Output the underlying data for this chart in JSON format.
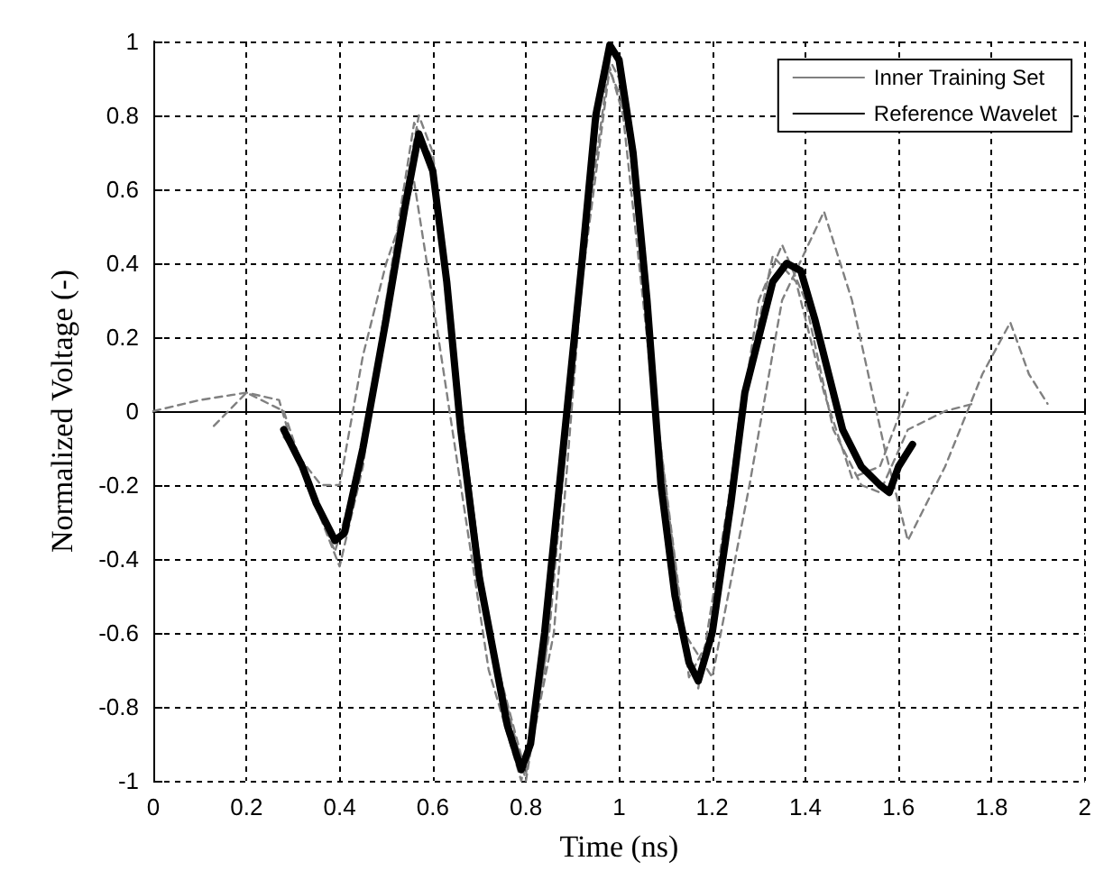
{
  "chart_data": {
    "type": "line",
    "xlabel": "Time (ns)",
    "ylabel": "Normalized Voltage (-)",
    "xlim": [
      0,
      2
    ],
    "ylim": [
      -1,
      1
    ],
    "xticks": [
      0,
      0.2,
      0.4,
      0.6,
      0.8,
      1,
      1.2,
      1.4,
      1.6,
      1.8,
      2
    ],
    "yticks": [
      -1,
      -0.8,
      -0.6,
      -0.4,
      -0.2,
      0,
      0.2,
      0.4,
      0.6,
      0.8,
      1
    ],
    "grid": true,
    "legend": "top right",
    "marker": "none",
    "series": [
      {
        "name": "Inner Training Set",
        "color": "#808080",
        "line_style": "dashed",
        "x": [
          0.13,
          0.2,
          0.28,
          0.32,
          0.39,
          0.45,
          0.5,
          0.56,
          0.6,
          0.66,
          0.72,
          0.8,
          0.86,
          0.92,
          0.98,
          1.02,
          1.08,
          1.14,
          1.2,
          1.28,
          1.35,
          1.44,
          1.5,
          1.57,
          1.62,
          1.7,
          1.78,
          1.84,
          1.88,
          1.92
        ],
        "values": [
          -0.04,
          0.05,
          0.0,
          -0.15,
          -0.38,
          -0.12,
          0.3,
          0.78,
          0.68,
          0.0,
          -0.6,
          -0.98,
          -0.6,
          0.35,
          0.93,
          0.75,
          0.0,
          -0.6,
          -0.72,
          -0.2,
          0.3,
          0.54,
          0.3,
          -0.1,
          -0.35,
          -0.15,
          0.1,
          0.24,
          0.1,
          0.02
        ]
      },
      {
        "color": "#808080",
        "line_style": "dashed",
        "x": [
          0,
          0.1,
          0.2,
          0.27,
          0.3,
          0.4,
          0.45,
          0.5,
          0.57,
          0.6,
          0.66,
          0.72,
          0.8,
          0.85,
          0.92,
          0.98,
          1.0,
          1.06,
          1.12,
          1.17,
          1.24,
          1.3,
          1.35,
          1.4,
          1.46,
          1.52,
          1.56,
          1.62,
          1.7,
          1.76
        ],
        "values": [
          0,
          0.03,
          0.05,
          0.03,
          -0.1,
          -0.42,
          -0.15,
          0.3,
          0.8,
          0.7,
          0,
          -0.6,
          -1.0,
          -0.6,
          0.4,
          0.95,
          0.9,
          0.2,
          -0.55,
          -0.75,
          -0.2,
          0.3,
          0.45,
          0.3,
          -0.05,
          -0.2,
          -0.22,
          -0.05,
          0.0,
          0.02
        ]
      },
      {
        "color": "#808080",
        "line_style": "dashed",
        "x": [
          0.28,
          0.36,
          0.4,
          0.45,
          0.5,
          0.56,
          0.6,
          0.66,
          0.72,
          0.79,
          0.84,
          0.9,
          0.97,
          1.02,
          1.08,
          1.15,
          1.2,
          1.26,
          1.33,
          1.38,
          1.44,
          1.5,
          1.56,
          1.62
        ],
        "values": [
          -0.07,
          -0.2,
          -0.2,
          0.15,
          0.4,
          0.62,
          0.3,
          -0.2,
          -0.7,
          -1.0,
          -0.7,
          0.2,
          0.95,
          0.8,
          0.0,
          -0.72,
          -0.6,
          0.0,
          0.42,
          0.35,
          0.05,
          -0.18,
          -0.15,
          0.05
        ]
      },
      {
        "name": "Reference Wavelet",
        "color": "#000000",
        "line_style": "solid",
        "x": [
          0.28,
          0.32,
          0.35,
          0.39,
          0.41,
          0.45,
          0.5,
          0.54,
          0.57,
          0.6,
          0.63,
          0.66,
          0.7,
          0.73,
          0.76,
          0.79,
          0.81,
          0.84,
          0.88,
          0.92,
          0.95,
          0.98,
          1.0,
          1.03,
          1.06,
          1.09,
          1.12,
          1.15,
          1.17,
          1.2,
          1.24,
          1.27,
          1.3,
          1.33,
          1.36,
          1.39,
          1.42,
          1.45,
          1.48,
          1.52,
          1.56,
          1.58,
          1.6,
          1.63
        ],
        "values": [
          -0.05,
          -0.15,
          -0.25,
          -0.35,
          -0.33,
          -0.1,
          0.25,
          0.55,
          0.75,
          0.65,
          0.35,
          -0.05,
          -0.45,
          -0.65,
          -0.85,
          -0.97,
          -0.9,
          -0.6,
          -0.1,
          0.4,
          0.8,
          0.99,
          0.95,
          0.7,
          0.3,
          -0.2,
          -0.5,
          -0.68,
          -0.73,
          -0.6,
          -0.25,
          0.05,
          0.2,
          0.35,
          0.4,
          0.38,
          0.25,
          0.1,
          -0.05,
          -0.15,
          -0.2,
          -0.22,
          -0.15,
          -0.09
        ]
      }
    ]
  }
}
